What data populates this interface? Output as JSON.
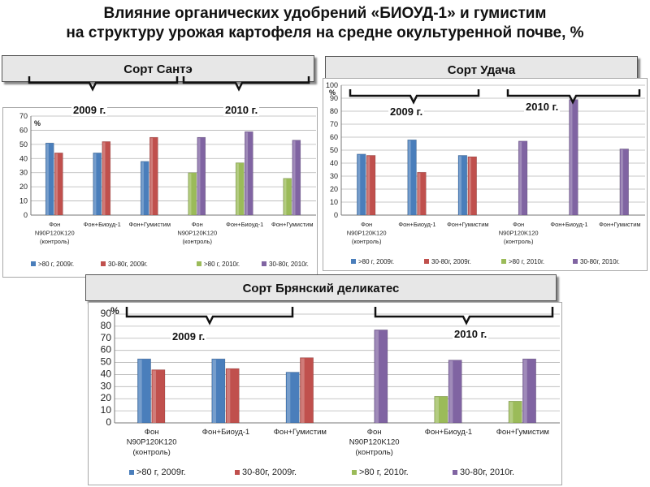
{
  "title_line1": "Влияние  органических удобрений «БИОУД-1» и гумистим",
  "title_line2": "на  структуру  урожая картофеля на средне окультуренной почве, %",
  "headers": {
    "sante": "Сорт Сантэ",
    "udacha": "Сорт Удача",
    "bryansk": "Сорт Брянский деликатес"
  },
  "year_labels": {
    "sante_2009": "2009 г.",
    "sante_2010": "2010 г.",
    "udacha_2009": "2009 г.",
    "udacha_2010": "2010 г.",
    "bryansk_2009": "2009 г.",
    "bryansk_2010": "2010 г."
  },
  "colors": {
    "blue": "#4a7ebb",
    "red": "#c0504d",
    "green": "#9bbb59",
    "purple": "#8064a2"
  },
  "chart_data": [
    {
      "id": "sante",
      "type": "bar",
      "ylabel": "%",
      "ylim": [
        0,
        70
      ],
      "yticks": [
        0,
        10,
        20,
        30,
        40,
        50,
        60,
        70
      ],
      "grid": true,
      "legend_position": "bottom",
      "categories": [
        [
          "Фон",
          "N90P120K120",
          "(контроль)"
        ],
        [
          "Фон+Биоуд-1"
        ],
        [
          "Фон+Гумистим"
        ],
        [
          "Фон",
          "N90P120K120",
          "(контроль)"
        ],
        [
          "Фон+Биоуд-1"
        ],
        [
          "Фон+Гумистим"
        ]
      ],
      "series": [
        {
          "name": ">80 г, 2009г.",
          "color": "#4a7ebb",
          "values": [
            51,
            44,
            38,
            null,
            null,
            null
          ]
        },
        {
          "name": "30-80г, 2009г.",
          "color": "#c0504d",
          "values": [
            44,
            52,
            55,
            null,
            null,
            null
          ]
        },
        {
          "name": ">80 г, 2010г.",
          "color": "#9bbb59",
          "values": [
            null,
            null,
            null,
            30,
            37,
            26
          ]
        },
        {
          "name": "30-80г, 2010г.",
          "color": "#8064a2",
          "values": [
            null,
            null,
            null,
            55,
            59,
            53
          ]
        }
      ]
    },
    {
      "id": "udacha",
      "type": "bar",
      "ylabel": "%",
      "ylim": [
        0,
        100
      ],
      "yticks": [
        0,
        10,
        20,
        30,
        40,
        50,
        60,
        70,
        80,
        90,
        100
      ],
      "grid": true,
      "legend_position": "bottom",
      "categories": [
        [
          "Фон",
          "N90P120K120",
          "(контроль)"
        ],
        [
          "Фон+Биоуд-1"
        ],
        [
          "Фон+Гумистим"
        ],
        [
          "Фон",
          "N90P120K120",
          "(контроль)"
        ],
        [
          "Фон+Биоуд-1"
        ],
        [
          "Фон+Гумистим"
        ]
      ],
      "series": [
        {
          "name": ">80 г, 2009г.",
          "color": "#4a7ebb",
          "values": [
            47,
            58,
            46,
            null,
            null,
            null
          ]
        },
        {
          "name": "30-80г, 2009г.",
          "color": "#c0504d",
          "values": [
            46,
            33,
            45,
            null,
            null,
            null
          ]
        },
        {
          "name": ">80 г, 2010г.",
          "color": "#9bbb59",
          "values": [
            null,
            null,
            null,
            null,
            null,
            null
          ]
        },
        {
          "name": "30-80г, 2010г.",
          "color": "#8064a2",
          "values": [
            null,
            null,
            null,
            57,
            89,
            51
          ]
        }
      ]
    },
    {
      "id": "bryansk",
      "type": "bar",
      "ylabel": "%",
      "ylim": [
        0,
        90
      ],
      "yticks": [
        0,
        10,
        20,
        30,
        40,
        50,
        60,
        70,
        80,
        90
      ],
      "grid": true,
      "legend_position": "bottom",
      "categories": [
        [
          "Фон",
          "N90P120K120",
          "(контроль)"
        ],
        [
          "Фон+Биоуд-1"
        ],
        [
          "Фон+Гумистим"
        ],
        [
          "Фон",
          "N90P120K120",
          "(контроль)"
        ],
        [
          "Фон+Биоуд-1"
        ],
        [
          "Фон+Гумистим"
        ]
      ],
      "series": [
        {
          "name": ">80 г, 2009г.",
          "color": "#4a7ebb",
          "values": [
            53,
            53,
            42,
            null,
            null,
            null
          ]
        },
        {
          "name": "30-80г, 2009г.",
          "color": "#c0504d",
          "values": [
            44,
            45,
            54,
            null,
            null,
            null
          ]
        },
        {
          "name": ">80 г, 2010г.",
          "color": "#9bbb59",
          "values": [
            null,
            null,
            null,
            null,
            22,
            18
          ]
        },
        {
          "name": "30-80г, 2010г.",
          "color": "#8064a2",
          "values": [
            null,
            null,
            null,
            77,
            52,
            53
          ]
        }
      ]
    }
  ]
}
